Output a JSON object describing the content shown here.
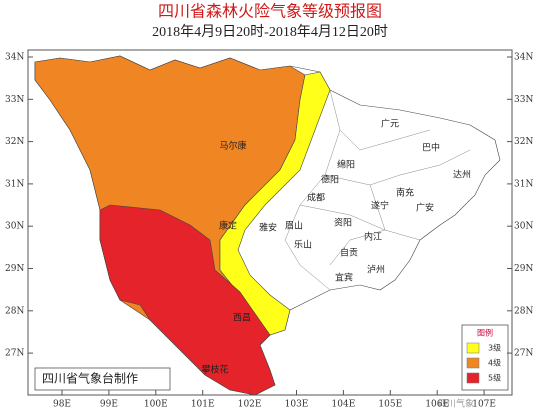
{
  "title": "四川省森林火险气象等级预报图",
  "subtitle": "2018年4月9日20时-2018年4月12日20时",
  "lat_labels": [
    "34N",
    "33N",
    "32N",
    "31N",
    "30N",
    "29N",
    "28N",
    "27N"
  ],
  "lon_labels": [
    "98E",
    "99E",
    "100E",
    "101E",
    "102E",
    "103E",
    "104E",
    "105E",
    "106E",
    "107E"
  ],
  "cities": [
    "马尔康",
    "康定",
    "雅安",
    "成都",
    "德阳",
    "绵阳",
    "广元",
    "巴中",
    "达州",
    "南充",
    "遂宁",
    "广安",
    "眉山",
    "资阳",
    "乐山",
    "内江",
    "自贡",
    "宜宾",
    "泸州",
    "西昌",
    "攀枝花"
  ],
  "legend": {
    "title": "图例",
    "items": [
      {
        "label": "3级",
        "color": "#ffff1a"
      },
      {
        "label": "4级",
        "color": "#f08524"
      },
      {
        "label": "5级",
        "color": "#e4242a"
      }
    ]
  },
  "credit": "四川省气象台制作",
  "watermark": "四川气象"
}
